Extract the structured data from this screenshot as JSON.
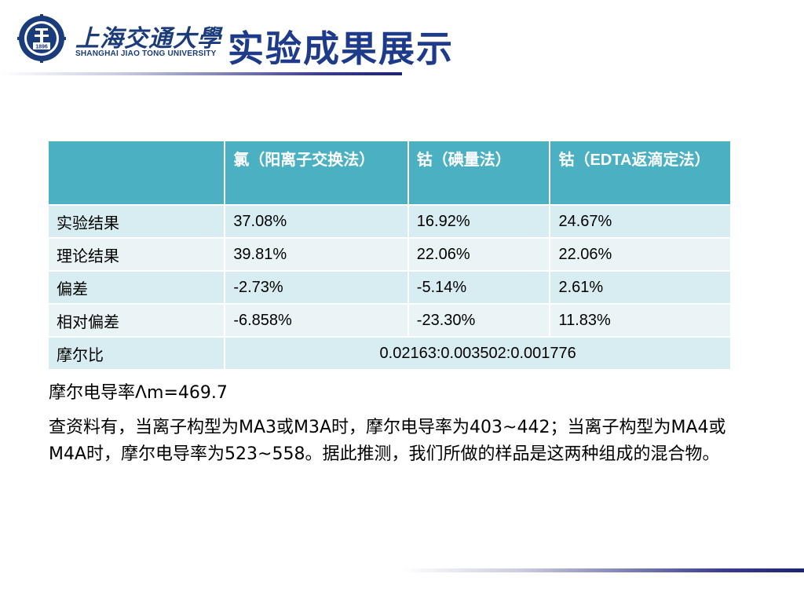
{
  "header": {
    "school_cn": "上海交通大學",
    "school_en": "SHANGHAI  JIAO TONG  UNIVERSITY",
    "title": "实验成果展示",
    "logo_text": "1896"
  },
  "table": {
    "headers": [
      "",
      "氯（阳离子交换法）",
      "钴（碘量法）",
      "钴（EDTA返滴定法）"
    ],
    "rows": [
      {
        "label": "实验结果",
        "values": [
          "37.08%",
          "16.92%",
          "24.67%"
        ]
      },
      {
        "label": "理论结果",
        "values": [
          "39.81%",
          "22.06%",
          "22.06%"
        ]
      },
      {
        "label": "偏差",
        "values": [
          "-2.73%",
          "-5.14%",
          "2.61%"
        ]
      },
      {
        "label": "相对偏差",
        "values": [
          "-6.858%",
          "-23.30%",
          "11.83%"
        ]
      }
    ],
    "molar_ratio_label": "摩尔比",
    "molar_ratio_value": "0.02163:0.003502:0.001776"
  },
  "text": {
    "conductivity": "摩尔电导率Λm=469.7",
    "conclusion": "查资料有，当离子构型为MA3或M3A时，摩尔电导率为403~442；当离子构型为MA4或M4A时，摩尔电导率为523~558。据此推测，我们所做的样品是这两种组成的混合物。"
  },
  "colors": {
    "header_fill": "#4cb0c3",
    "row_odd": "#d8edf1",
    "row_even": "#eaf4f6",
    "title": "#1e3a8a",
    "logo": "#1b3c7a"
  }
}
